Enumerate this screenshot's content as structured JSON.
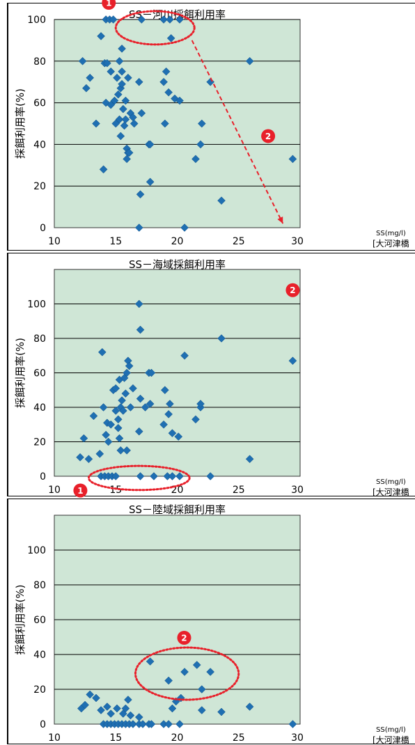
{
  "colors": {
    "plot_bg": "#cfe6d6",
    "marker": "#1f6fb2",
    "annotation": "#e8202a",
    "grid": "#000000"
  },
  "chart_data": [
    {
      "type": "scatter",
      "title": "SS－河川採餌利用率",
      "xlabel": "",
      "ylabel": "採餌利用率(%)",
      "x_unit": "SS(mg/l)",
      "x_location": "[大河津橋",
      "xlim": [
        10,
        30
      ],
      "ylim": [
        0,
        100
      ],
      "xticks": [
        "10",
        "15",
        "20",
        "25",
        "30"
      ],
      "yticks": [
        "0",
        "20",
        "40",
        "60",
        "80",
        "100"
      ],
      "grid": "horizontal",
      "points": [
        [
          12.3,
          80
        ],
        [
          12.6,
          67
        ],
        [
          12.9,
          72
        ],
        [
          13.4,
          50
        ],
        [
          13.8,
          92
        ],
        [
          14.0,
          28
        ],
        [
          14.1,
          79
        ],
        [
          14.2,
          100
        ],
        [
          14.2,
          60
        ],
        [
          14.3,
          79
        ],
        [
          14.5,
          100
        ],
        [
          14.6,
          59
        ],
        [
          14.6,
          75
        ],
        [
          14.8,
          100
        ],
        [
          14.9,
          61
        ],
        [
          15.0,
          50
        ],
        [
          15.1,
          72
        ],
        [
          15.2,
          64
        ],
        [
          15.3,
          80
        ],
        [
          15.3,
          52
        ],
        [
          15.4,
          44
        ],
        [
          15.4,
          67
        ],
        [
          15.5,
          86
        ],
        [
          15.5,
          69
        ],
        [
          15.5,
          75
        ],
        [
          15.6,
          57
        ],
        [
          15.7,
          49
        ],
        [
          15.8,
          61
        ],
        [
          15.8,
          52
        ],
        [
          15.9,
          38
        ],
        [
          15.9,
          33
        ],
        [
          16.0,
          72
        ],
        [
          16.0,
          36
        ],
        [
          16.1,
          36
        ],
        [
          16.2,
          55
        ],
        [
          16.4,
          53
        ],
        [
          16.5,
          50
        ],
        [
          16.9,
          70
        ],
        [
          17.0,
          16
        ],
        [
          17.1,
          55
        ],
        [
          17.1,
          100
        ],
        [
          16.9,
          0
        ],
        [
          17.7,
          40
        ],
        [
          17.8,
          22
        ],
        [
          17.8,
          40
        ],
        [
          18.9,
          100
        ],
        [
          18.9,
          70
        ],
        [
          19.0,
          50
        ],
        [
          19.1,
          75
        ],
        [
          19.3,
          65
        ],
        [
          19.4,
          100
        ],
        [
          19.5,
          91
        ],
        [
          19.8,
          62
        ],
        [
          20.2,
          100
        ],
        [
          20.2,
          61
        ],
        [
          20.6,
          0
        ],
        [
          21.5,
          33
        ],
        [
          21.9,
          40
        ],
        [
          22.0,
          50
        ],
        [
          22.7,
          70
        ],
        [
          23.6,
          13
        ],
        [
          25.9,
          80
        ],
        [
          29.4,
          33
        ]
      ],
      "annotations": [
        {
          "label": "①",
          "shape": "ellipse",
          "cx": 18.2,
          "cy": 96,
          "rx": 3.2,
          "ry": 8
        },
        {
          "label": "②",
          "shape": "arrow",
          "from": [
            21.2,
            90
          ],
          "to": [
            28.6,
            2
          ],
          "label_at": [
            27.4,
            44
          ]
        }
      ]
    },
    {
      "type": "scatter",
      "title": "SS－海域採餌利用率",
      "xlabel": "",
      "ylabel": "採餌利用率(%)",
      "x_unit": "SS(mg/l)",
      "x_location": "[大河津橋",
      "xlim": [
        10,
        30
      ],
      "ylim": [
        0,
        120
      ],
      "xticks": [
        "10",
        "15",
        "20",
        "25",
        "30"
      ],
      "yticks": [
        "0",
        "20",
        "40",
        "60",
        "80",
        "100"
      ],
      "grid": "horizontal",
      "points": [
        [
          12.1,
          11
        ],
        [
          12.4,
          22
        ],
        [
          12.8,
          10
        ],
        [
          13.2,
          35
        ],
        [
          13.7,
          13
        ],
        [
          13.9,
          72
        ],
        [
          14.0,
          40
        ],
        [
          14.2,
          24
        ],
        [
          14.3,
          31
        ],
        [
          14.4,
          20
        ],
        [
          14.6,
          30
        ],
        [
          14.8,
          50
        ],
        [
          15.0,
          51
        ],
        [
          15.0,
          38
        ],
        [
          15.2,
          33
        ],
        [
          15.2,
          28
        ],
        [
          15.3,
          56
        ],
        [
          15.3,
          22
        ],
        [
          15.4,
          40
        ],
        [
          15.4,
          15
        ],
        [
          15.5,
          44
        ],
        [
          15.6,
          38
        ],
        [
          15.7,
          57
        ],
        [
          15.8,
          48
        ],
        [
          15.9,
          60
        ],
        [
          15.9,
          15
        ],
        [
          16.0,
          67
        ],
        [
          16.1,
          64
        ],
        [
          16.2,
          40
        ],
        [
          16.4,
          51
        ],
        [
          16.9,
          26
        ],
        [
          17.0,
          45
        ],
        [
          16.9,
          100
        ],
        [
          17.0,
          85
        ],
        [
          17.4,
          40
        ],
        [
          17.7,
          60
        ],
        [
          17.9,
          60
        ],
        [
          17.8,
          42
        ],
        [
          18.9,
          30
        ],
        [
          19.0,
          50
        ],
        [
          19.3,
          36
        ],
        [
          19.4,
          42
        ],
        [
          19.6,
          25
        ],
        [
          20.1,
          23
        ],
        [
          20.6,
          70
        ],
        [
          21.5,
          33
        ],
        [
          21.9,
          40
        ],
        [
          21.9,
          42
        ],
        [
          23.6,
          80
        ],
        [
          25.9,
          10
        ],
        [
          29.4,
          67
        ],
        [
          13.8,
          0
        ],
        [
          14.1,
          0
        ],
        [
          14.4,
          0
        ],
        [
          14.7,
          0
        ],
        [
          15.0,
          0
        ],
        [
          17.0,
          0
        ],
        [
          18.1,
          0
        ],
        [
          19.2,
          0
        ],
        [
          19.6,
          0
        ],
        [
          20.2,
          0
        ],
        [
          22.7,
          0
        ]
      ],
      "annotations": [
        {
          "label": "①",
          "shape": "ellipse",
          "cx": 16.9,
          "cy": -1,
          "rx": 4.1,
          "ry": 7
        },
        {
          "label": "②",
          "shape": "text",
          "at": [
            29.4,
            108
          ]
        }
      ]
    },
    {
      "type": "scatter",
      "title": "SS－陸域採餌利用率",
      "xlabel": "",
      "ylabel": "採餌利用率(%)",
      "x_unit": "SS(mg/l)",
      "x_location": "[大河津橋",
      "xlim": [
        10,
        30
      ],
      "ylim": [
        0,
        120
      ],
      "xticks": [
        "10",
        "15",
        "20",
        "25",
        "30"
      ],
      "yticks": [
        "0",
        "20",
        "40",
        "60",
        "80",
        "100"
      ],
      "grid": "horizontal",
      "points": [
        [
          12.2,
          9
        ],
        [
          12.5,
          11
        ],
        [
          12.9,
          17
        ],
        [
          13.4,
          15
        ],
        [
          13.8,
          8
        ],
        [
          14.3,
          10
        ],
        [
          14.6,
          6
        ],
        [
          15.1,
          9
        ],
        [
          15.6,
          6
        ],
        [
          15.8,
          9
        ],
        [
          16.0,
          14
        ],
        [
          16.2,
          5
        ],
        [
          16.9,
          4
        ],
        [
          17.8,
          36
        ],
        [
          19.3,
          25
        ],
        [
          19.6,
          9
        ],
        [
          19.9,
          13
        ],
        [
          20.3,
          15
        ],
        [
          20.6,
          30
        ],
        [
          21.6,
          34
        ],
        [
          22.0,
          20
        ],
        [
          22.0,
          8
        ],
        [
          22.7,
          30
        ],
        [
          23.6,
          7
        ],
        [
          25.9,
          10
        ],
        [
          14.0,
          0
        ],
        [
          14.3,
          0
        ],
        [
          14.6,
          0
        ],
        [
          14.9,
          0
        ],
        [
          15.2,
          0
        ],
        [
          15.5,
          0
        ],
        [
          15.8,
          0
        ],
        [
          16.1,
          0
        ],
        [
          16.4,
          0
        ],
        [
          16.9,
          0
        ],
        [
          17.2,
          0
        ],
        [
          17.7,
          0
        ],
        [
          17.9,
          0
        ],
        [
          18.9,
          0
        ],
        [
          19.3,
          0
        ],
        [
          20.2,
          0
        ],
        [
          29.4,
          0
        ]
      ],
      "annotations": [
        {
          "label": "②",
          "shape": "ellipse",
          "cx": 20.8,
          "cy": 29,
          "rx": 4.2,
          "ry": 15
        }
      ]
    }
  ]
}
